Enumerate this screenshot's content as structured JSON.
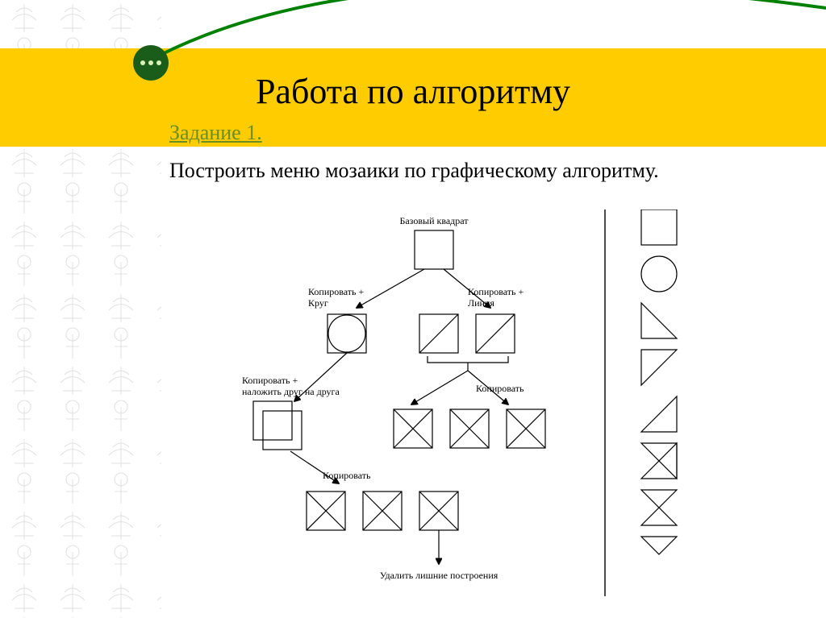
{
  "slide": {
    "title": "Работа по алгоритму",
    "task_label": "Задание 1.",
    "body": "Построить меню мозаики по графическому алгоритму."
  },
  "styling": {
    "band_color": "#ffcc00",
    "swoosh_color": "#008000",
    "badge_bg": "#1a5c1a",
    "badge_dot": "#d9f2b8",
    "task_color": "#6b8e23",
    "title_fontsize": 44,
    "body_fontsize": 26,
    "diagram_stroke": "#000000",
    "diagram_text_fontsize": 12
  },
  "diagram": {
    "type": "flowchart",
    "labels": {
      "root": "Базовый квадрат",
      "left1": "Копировать +\nКруг",
      "right1": "Копировать +\nЛиния",
      "left2": "Копировать +\nналожить друг на друга",
      "right2": "Копировать",
      "l3": "Копировать",
      "final": "Удалить лишние построения"
    },
    "square_size": 48,
    "menu_shapes": [
      "square",
      "circle",
      "tri_bl",
      "tri_tl",
      "tri_br",
      "tri_tr_br",
      "hourglass",
      "tri_tr"
    ]
  }
}
